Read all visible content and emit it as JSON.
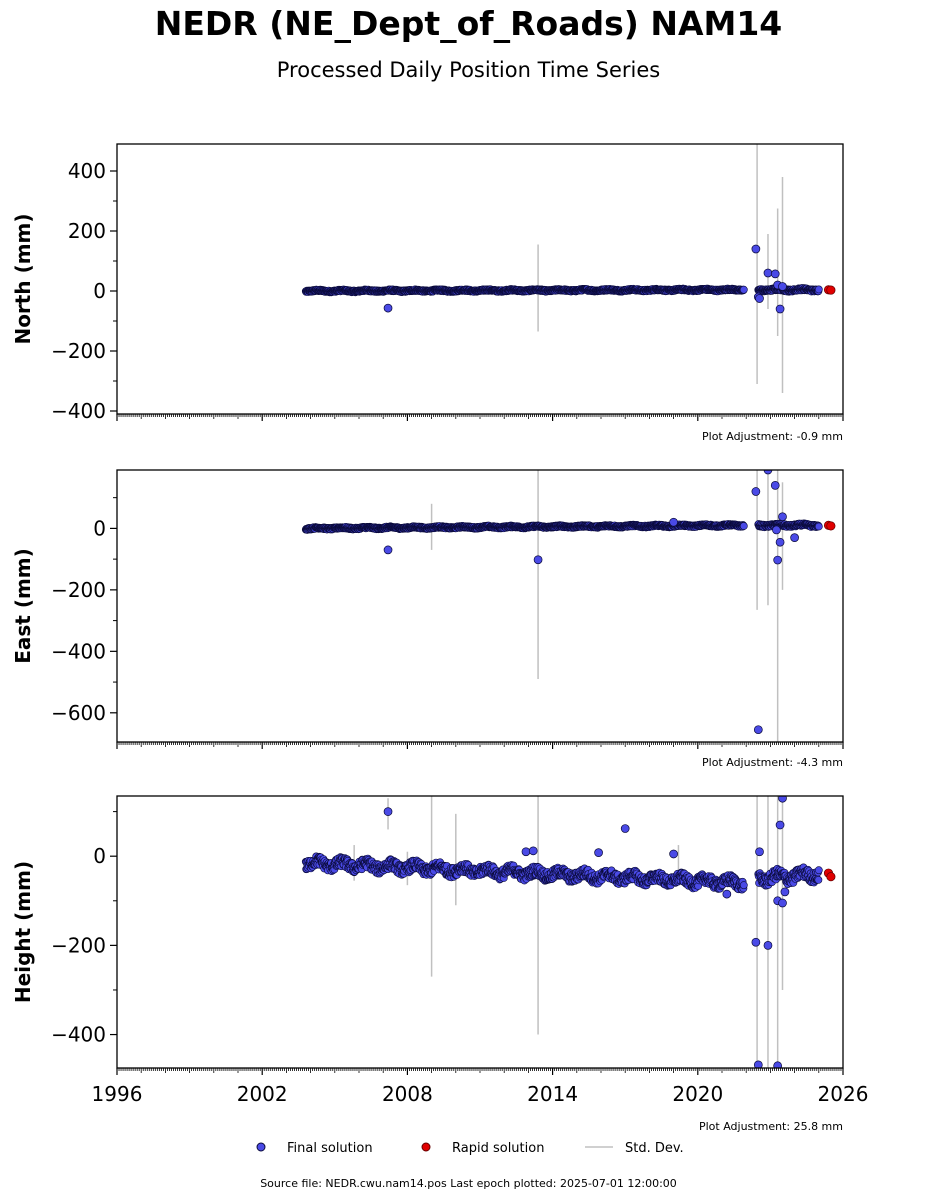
{
  "title": "NEDR (NE_Dept_of_Roads) NAM14",
  "subtitle": "Processed Daily Position Time Series",
  "source_line": "Source file: NEDR.cwu.nam14.pos  Last epoch plotted: 2025-07-01 12:00:00",
  "colors": {
    "final": "#4a4ae6",
    "final_edge": "#0a0a3a",
    "rapid": "#e00000",
    "stddev": "#c0c0c0"
  },
  "chart_data": [
    {
      "type": "scatter",
      "ylabel": "North (mm)",
      "ylim": [
        -410,
        490
      ],
      "yticks": [
        400,
        200,
        0,
        -200,
        -400
      ],
      "ytick_labels": [
        "400",
        "200",
        "0",
        "−200",
        "−400"
      ],
      "xlim": [
        1996,
        2026
      ],
      "adjustment": "Plot Adjustment: -0.9 mm",
      "baseline_segments": [
        {
          "x0": 2003.8,
          "x1": 2021.9,
          "y0": 0,
          "y1": 4,
          "spread": 3
        },
        {
          "x0": 2022.5,
          "x1": 2025.0,
          "y0": 4,
          "y1": 4,
          "spread": 4
        }
      ],
      "final_outliers": [
        {
          "x": 2007.2,
          "y": -57
        },
        {
          "x": 2022.4,
          "y": 140
        },
        {
          "x": 2022.5,
          "y": -20
        },
        {
          "x": 2022.55,
          "y": -25
        },
        {
          "x": 2022.9,
          "y": 60
        },
        {
          "x": 2023.2,
          "y": 57
        },
        {
          "x": 2023.3,
          "y": 20
        },
        {
          "x": 2023.4,
          "y": -60
        },
        {
          "x": 2023.5,
          "y": 15
        }
      ],
      "rapid": [
        {
          "x": 2025.4,
          "y": 4
        },
        {
          "x": 2025.5,
          "y": 3
        }
      ],
      "stddev": [
        {
          "x": 2013.4,
          "lo": -135,
          "hi": 155
        },
        {
          "x": 2022.45,
          "lo": -310,
          "hi": 490
        },
        {
          "x": 2022.9,
          "lo": -60,
          "hi": 190
        },
        {
          "x": 2023.3,
          "lo": -150,
          "hi": 275
        },
        {
          "x": 2023.5,
          "lo": -340,
          "hi": 380
        }
      ]
    },
    {
      "type": "scatter",
      "ylabel": "East (mm)",
      "ylim": [
        -695,
        190
      ],
      "yticks": [
        0,
        -200,
        -400,
        -600
      ],
      "ytick_labels": [
        "0",
        "−200",
        "−400",
        "−600"
      ],
      "xlim": [
        1996,
        2026
      ],
      "adjustment": "Plot Adjustment: -4.3 mm",
      "baseline_segments": [
        {
          "x0": 2003.8,
          "x1": 2021.9,
          "y0": 0,
          "y1": 10,
          "spread": 3
        },
        {
          "x0": 2022.5,
          "x1": 2025.0,
          "y0": 10,
          "y1": 10,
          "spread": 4
        }
      ],
      "final_outliers": [
        {
          "x": 2007.2,
          "y": -70
        },
        {
          "x": 2013.4,
          "y": -102
        },
        {
          "x": 2019.0,
          "y": 20
        },
        {
          "x": 2022.4,
          "y": 120
        },
        {
          "x": 2022.5,
          "y": -655
        },
        {
          "x": 2022.9,
          "y": 190
        },
        {
          "x": 2023.2,
          "y": 140
        },
        {
          "x": 2023.25,
          "y": -5
        },
        {
          "x": 2023.3,
          "y": -103
        },
        {
          "x": 2023.4,
          "y": -45
        },
        {
          "x": 2023.5,
          "y": 38
        },
        {
          "x": 2024.0,
          "y": -30
        }
      ],
      "rapid": [
        {
          "x": 2025.4,
          "y": 10
        },
        {
          "x": 2025.5,
          "y": 8
        }
      ],
      "stddev": [
        {
          "x": 2009.0,
          "lo": -70,
          "hi": 80
        },
        {
          "x": 2013.4,
          "lo": -490,
          "hi": 190
        },
        {
          "x": 2022.45,
          "lo": -265,
          "hi": 190
        },
        {
          "x": 2022.9,
          "lo": -250,
          "hi": 190
        },
        {
          "x": 2023.3,
          "lo": -695,
          "hi": 190
        },
        {
          "x": 2023.5,
          "lo": -200,
          "hi": 150
        }
      ]
    },
    {
      "type": "scatter",
      "ylabel": "Height (mm)",
      "ylim": [
        -475,
        135
      ],
      "yticks": [
        0,
        -200,
        -400
      ],
      "ytick_labels": [
        "0",
        "−200",
        "−400"
      ],
      "xlim": [
        1996,
        2026
      ],
      "xticks": [
        1996,
        2002,
        2008,
        2014,
        2020,
        2026
      ],
      "xtick_labels": [
        "1996",
        "2002",
        "2008",
        "2014",
        "2020",
        "2026"
      ],
      "adjustment": "Plot Adjustment: 25.8 mm",
      "baseline_segments": [
        {
          "x0": 2003.8,
          "x1": 2021.9,
          "y0": -15,
          "y1": -60,
          "spread": 11
        },
        {
          "x0": 2022.5,
          "x1": 2025.0,
          "y0": -50,
          "y1": -40,
          "spread": 12
        }
      ],
      "final_outliers": [
        {
          "x": 2007.2,
          "y": 100
        },
        {
          "x": 2012.9,
          "y": 10
        },
        {
          "x": 2013.2,
          "y": 12
        },
        {
          "x": 2015.9,
          "y": 8
        },
        {
          "x": 2017.0,
          "y": 62
        },
        {
          "x": 2019.0,
          "y": 5
        },
        {
          "x": 2021.2,
          "y": -85
        },
        {
          "x": 2022.4,
          "y": -193
        },
        {
          "x": 2022.5,
          "y": -468
        },
        {
          "x": 2022.55,
          "y": 10
        },
        {
          "x": 2022.9,
          "y": -200
        },
        {
          "x": 2023.3,
          "y": -470
        },
        {
          "x": 2023.3,
          "y": -100
        },
        {
          "x": 2023.4,
          "y": 70
        },
        {
          "x": 2023.5,
          "y": 130
        },
        {
          "x": 2023.5,
          "y": -105
        },
        {
          "x": 2023.6,
          "y": -80
        }
      ],
      "rapid": [
        {
          "x": 2025.4,
          "y": -38
        },
        {
          "x": 2025.5,
          "y": -46
        }
      ],
      "stddev": [
        {
          "x": 2005.8,
          "lo": -55,
          "hi": 25
        },
        {
          "x": 2007.2,
          "lo": 60,
          "hi": 130
        },
        {
          "x": 2008.0,
          "lo": -65,
          "hi": 10
        },
        {
          "x": 2009.0,
          "lo": -270,
          "hi": 135
        },
        {
          "x": 2010.0,
          "lo": -110,
          "hi": 95
        },
        {
          "x": 2013.4,
          "lo": -400,
          "hi": 135
        },
        {
          "x": 2019.2,
          "lo": -60,
          "hi": 25
        },
        {
          "x": 2022.45,
          "lo": -475,
          "hi": 135
        },
        {
          "x": 2022.9,
          "lo": -475,
          "hi": 135
        },
        {
          "x": 2023.3,
          "lo": -475,
          "hi": 135
        },
        {
          "x": 2023.5,
          "lo": -300,
          "hi": 135
        }
      ]
    }
  ],
  "legend": {
    "final": "Final solution",
    "rapid": "Rapid solution",
    "stddev": "Std. Dev."
  }
}
